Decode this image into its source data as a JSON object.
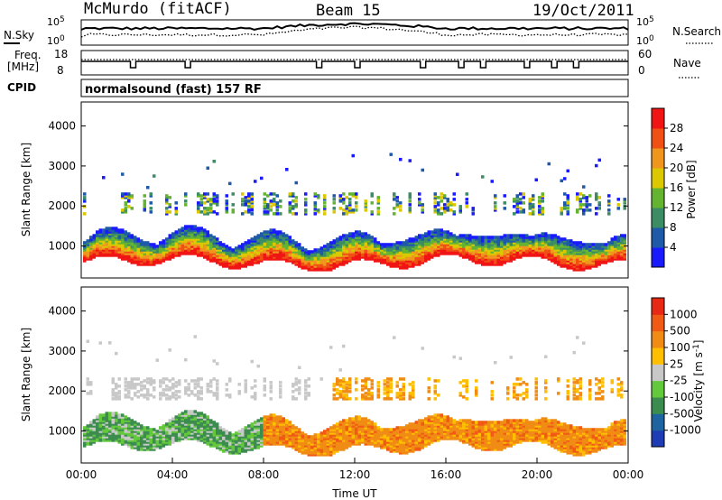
{
  "header": {
    "station": "McMurdo (fitACF)",
    "beam": "Beam 15",
    "date": "19/Oct/2011"
  },
  "sky_panel": {
    "left_label": "N.Sky",
    "right_label": "N.Search",
    "left_ticks": [
      "10^5",
      "10^0"
    ],
    "right_ticks": [
      "10^5",
      "10^0"
    ]
  },
  "freq_panel": {
    "left_label_1": "Freq.",
    "left_label_2": "[MHz]",
    "right_label": "Nave",
    "left_ticks": [
      "18",
      "8"
    ],
    "right_ticks": [
      "60",
      "0"
    ]
  },
  "cpid_panel": {
    "label": "CPID",
    "text": "normalsound (fast) 157 RF"
  },
  "chart_data": [
    {
      "type": "heatmap",
      "title": "",
      "ylabel": "Slant Range [km]",
      "ylim": [
        200,
        4600
      ],
      "y_ticks": [
        1000,
        2000,
        3000,
        4000
      ],
      "x_ticks": [
        "00:00",
        "04:00",
        "08:00",
        "12:00",
        "16:00",
        "20:00",
        "00:00"
      ],
      "colorbar": {
        "label": "Power [dB]",
        "ticks": [
          "4",
          "8",
          "12",
          "16",
          "20",
          "24",
          "28"
        ],
        "colors": [
          "#1a1aff",
          "#1e5aa8",
          "#3c8c64",
          "#64b432",
          "#dcc800",
          "#f0961e",
          "#f05014",
          "#f01414"
        ]
      }
    },
    {
      "type": "heatmap",
      "title": "",
      "ylabel": "Slant Range [km]",
      "xlabel": "Time UT",
      "ylim": [
        200,
        4600
      ],
      "y_ticks": [
        1000,
        2000,
        3000,
        4000
      ],
      "x_ticks": [
        "00:00",
        "04:00",
        "08:00",
        "12:00",
        "16:00",
        "20:00",
        "00:00"
      ],
      "colorbar": {
        "label": "Velocity [m s^-1]",
        "ticks": [
          "1000",
          "500",
          "100",
          "25",
          "-25",
          "-100",
          "-500",
          "-1000"
        ],
        "colors": [
          "#1e3cb4",
          "#1e64a0",
          "#3c8c50",
          "#64c83c",
          "#c8c8c8",
          "#ffbe00",
          "#f08c14",
          "#f05a14",
          "#e62814"
        ]
      }
    }
  ]
}
